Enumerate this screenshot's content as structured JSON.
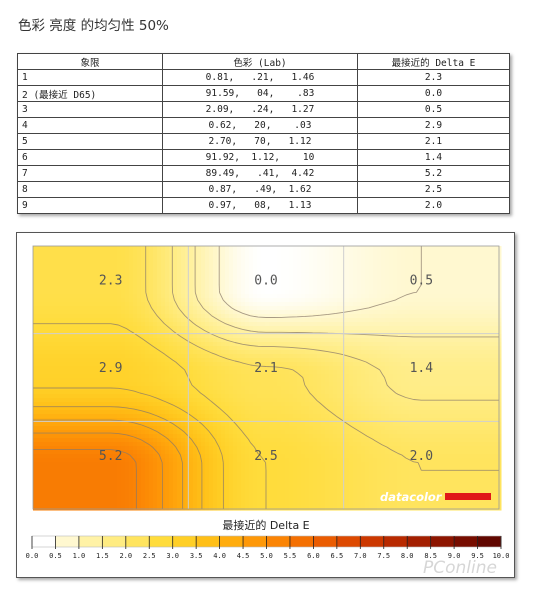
{
  "page_title": "色彩 亮度 的均匀性 50%",
  "table": {
    "headers": [
      "象限",
      "色彩 (Lab)",
      "最接近的 Delta E"
    ],
    "rows": [
      {
        "q": "1",
        "lab": "0.81,   .21,   1.46",
        "de": "2.3"
      },
      {
        "q": "2 (最接近 D65)",
        "lab": "91.59,   04,    .83",
        "de": "0.0"
      },
      {
        "q": "3",
        "lab": "2.09,   .24,   1.27",
        "de": "0.5"
      },
      {
        "q": "4",
        "lab": "0.62,   20,    .03",
        "de": "2.9"
      },
      {
        "q": "5",
        "lab": "2.70,   70,   1.12",
        "de": "2.1"
      },
      {
        "q": "6",
        "lab": "91.92,  1.12,    10",
        "de": "1.4"
      },
      {
        "q": "7",
        "lab": "89.49,   .41,  4.42",
        "de": "5.2"
      },
      {
        "q": "8",
        "lab": "0.87,   .49,  1.62",
        "de": "2.5"
      },
      {
        "q": "9",
        "lab": "0.97,   08,   1.13",
        "de": "2.0"
      }
    ]
  },
  "chart_data": {
    "type": "heatmap",
    "grid": [
      [
        2.3,
        0.0,
        0.5
      ],
      [
        2.9,
        2.1,
        1.4
      ],
      [
        5.2,
        2.5,
        2.0
      ]
    ],
    "cell_labels": [
      [
        "2.3",
        "0.0",
        "0.5"
      ],
      [
        "2.9",
        "2.1",
        "1.4"
      ],
      [
        "5.2",
        "2.5",
        "2.0"
      ]
    ],
    "colorbar": {
      "title": "最接近的 Delta E",
      "ticks": [
        "0.0",
        "0.5",
        "1.0",
        "1.5",
        "2.0",
        "2.5",
        "3.0",
        "3.5",
        "4.0",
        "4.5",
        "5.0",
        "5.5",
        "6.0",
        "6.5",
        "7.0",
        "7.5",
        "8.0",
        "8.5",
        "9.0",
        "9.5",
        "10.0"
      ],
      "colors": [
        "#ffffff",
        "#fff8d0",
        "#fff2a6",
        "#ffec82",
        "#ffe45e",
        "#ffdc3c",
        "#ffcf26",
        "#ffbf17",
        "#ffac0e",
        "#fe9808",
        "#fb8404",
        "#f47002",
        "#ea5c01",
        "#dd4900",
        "#cc3800",
        "#b82a00",
        "#a31f00",
        "#8d1500",
        "#770d00",
        "#610700"
      ]
    },
    "logo_text": "datacolor",
    "grid_lines": true
  },
  "watermark": "PConline"
}
